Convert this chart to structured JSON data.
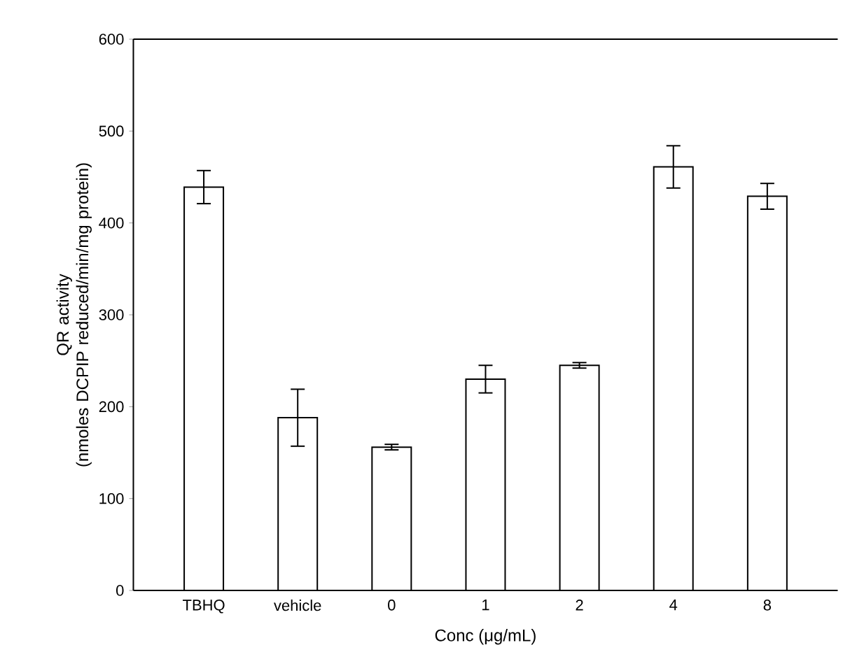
{
  "chart_data": {
    "type": "bar",
    "xlabel": "Conc (μg/mL)",
    "ylabel": "QR activity\n(nmoles DCPIP reduced/min/mg protein)",
    "categories": [
      "TBHQ",
      "vehicle",
      "0",
      "1",
      "2",
      "4",
      "8"
    ],
    "values": [
      439,
      188,
      156,
      230,
      245,
      461,
      429
    ],
    "errors": [
      18,
      31,
      3,
      15,
      3,
      23,
      14
    ],
    "color": "#ffffff",
    "ylim": [
      0,
      600
    ],
    "yticks": [
      0,
      100,
      200,
      300,
      400,
      500,
      600
    ],
    "grid": false
  }
}
